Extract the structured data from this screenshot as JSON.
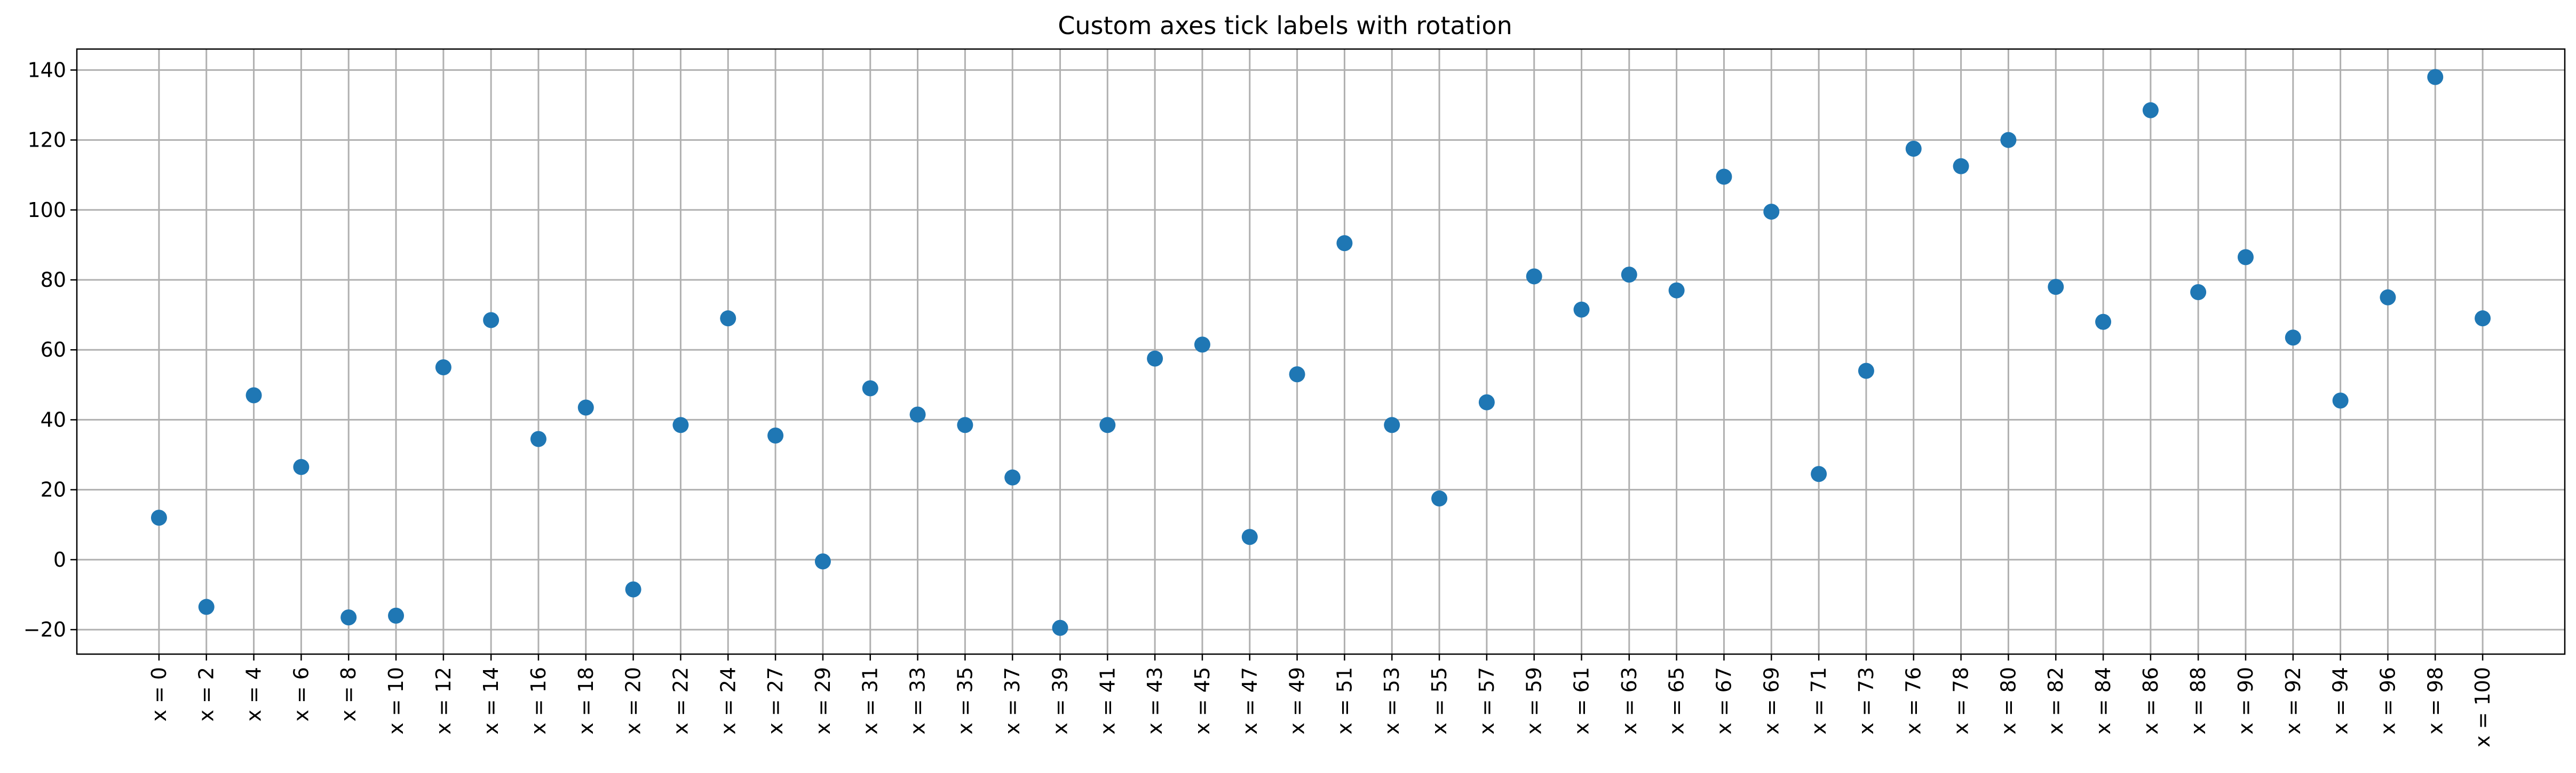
{
  "chart_data": {
    "type": "scatter",
    "title": "Custom axes tick labels with rotation",
    "xlabel": "",
    "ylabel": "",
    "grid": true,
    "marker_color": "#1f77b4",
    "xlim": [
      -3.535,
      103.535
    ],
    "ylim": [
      -27,
      146
    ],
    "x_tick_rotation_deg": 90,
    "x_tick_labels": [
      "x = 0",
      "x = 2",
      "x = 4",
      "x = 6",
      "x = 8",
      "x = 10",
      "x = 12",
      "x = 14",
      "x = 16",
      "x = 18",
      "x = 20",
      "x = 22",
      "x = 24",
      "x = 27",
      "x = 29",
      "x = 31",
      "x = 33",
      "x = 35",
      "x = 37",
      "x = 39",
      "x = 41",
      "x = 43",
      "x = 45",
      "x = 47",
      "x = 49",
      "x = 51",
      "x = 53",
      "x = 55",
      "x = 57",
      "x = 59",
      "x = 61",
      "x = 63",
      "x = 65",
      "x = 67",
      "x = 69",
      "x = 71",
      "x = 73",
      "x = 76",
      "x = 78",
      "x = 80",
      "x = 82",
      "x = 84",
      "x = 86",
      "x = 88",
      "x = 90",
      "x = 92",
      "x = 94",
      "x = 96",
      "x = 98",
      "x = 100"
    ],
    "x": [
      0,
      2.04,
      4.08,
      6.12,
      8.16,
      10.2,
      12.24,
      14.29,
      16.33,
      18.37,
      20.41,
      22.45,
      24.49,
      26.53,
      28.57,
      30.61,
      32.65,
      34.69,
      36.73,
      38.78,
      40.82,
      42.86,
      44.9,
      46.94,
      48.98,
      51.02,
      53.06,
      55.1,
      57.14,
      59.18,
      61.22,
      63.27,
      65.31,
      67.35,
      69.39,
      71.43,
      73.47,
      75.51,
      77.55,
      79.59,
      81.63,
      83.67,
      85.71,
      87.76,
      89.8,
      91.84,
      93.88,
      95.92,
      97.96,
      100
    ],
    "y": [
      12,
      -13.5,
      47,
      26.5,
      -16.5,
      -16,
      55,
      68.5,
      34.5,
      43.5,
      -8.5,
      38.5,
      69,
      35.5,
      -0.5,
      49,
      41.5,
      38.5,
      23.5,
      -19.5,
      38.5,
      57.5,
      61.5,
      6.5,
      53,
      90.5,
      38.5,
      17.5,
      45,
      81,
      71.5,
      81.5,
      77,
      109.5,
      99.5,
      24.5,
      54,
      117.5,
      112.5,
      120,
      78,
      68,
      128.5,
      76.5,
      86.5,
      63.5,
      45.5,
      75,
      138,
      69
    ],
    "y_ticks": [
      -20,
      0,
      20,
      40,
      60,
      80,
      100,
      120,
      140
    ],
    "y_tick_labels": [
      "−20",
      "0",
      "20",
      "40",
      "60",
      "80",
      "100",
      "120",
      "140"
    ]
  }
}
